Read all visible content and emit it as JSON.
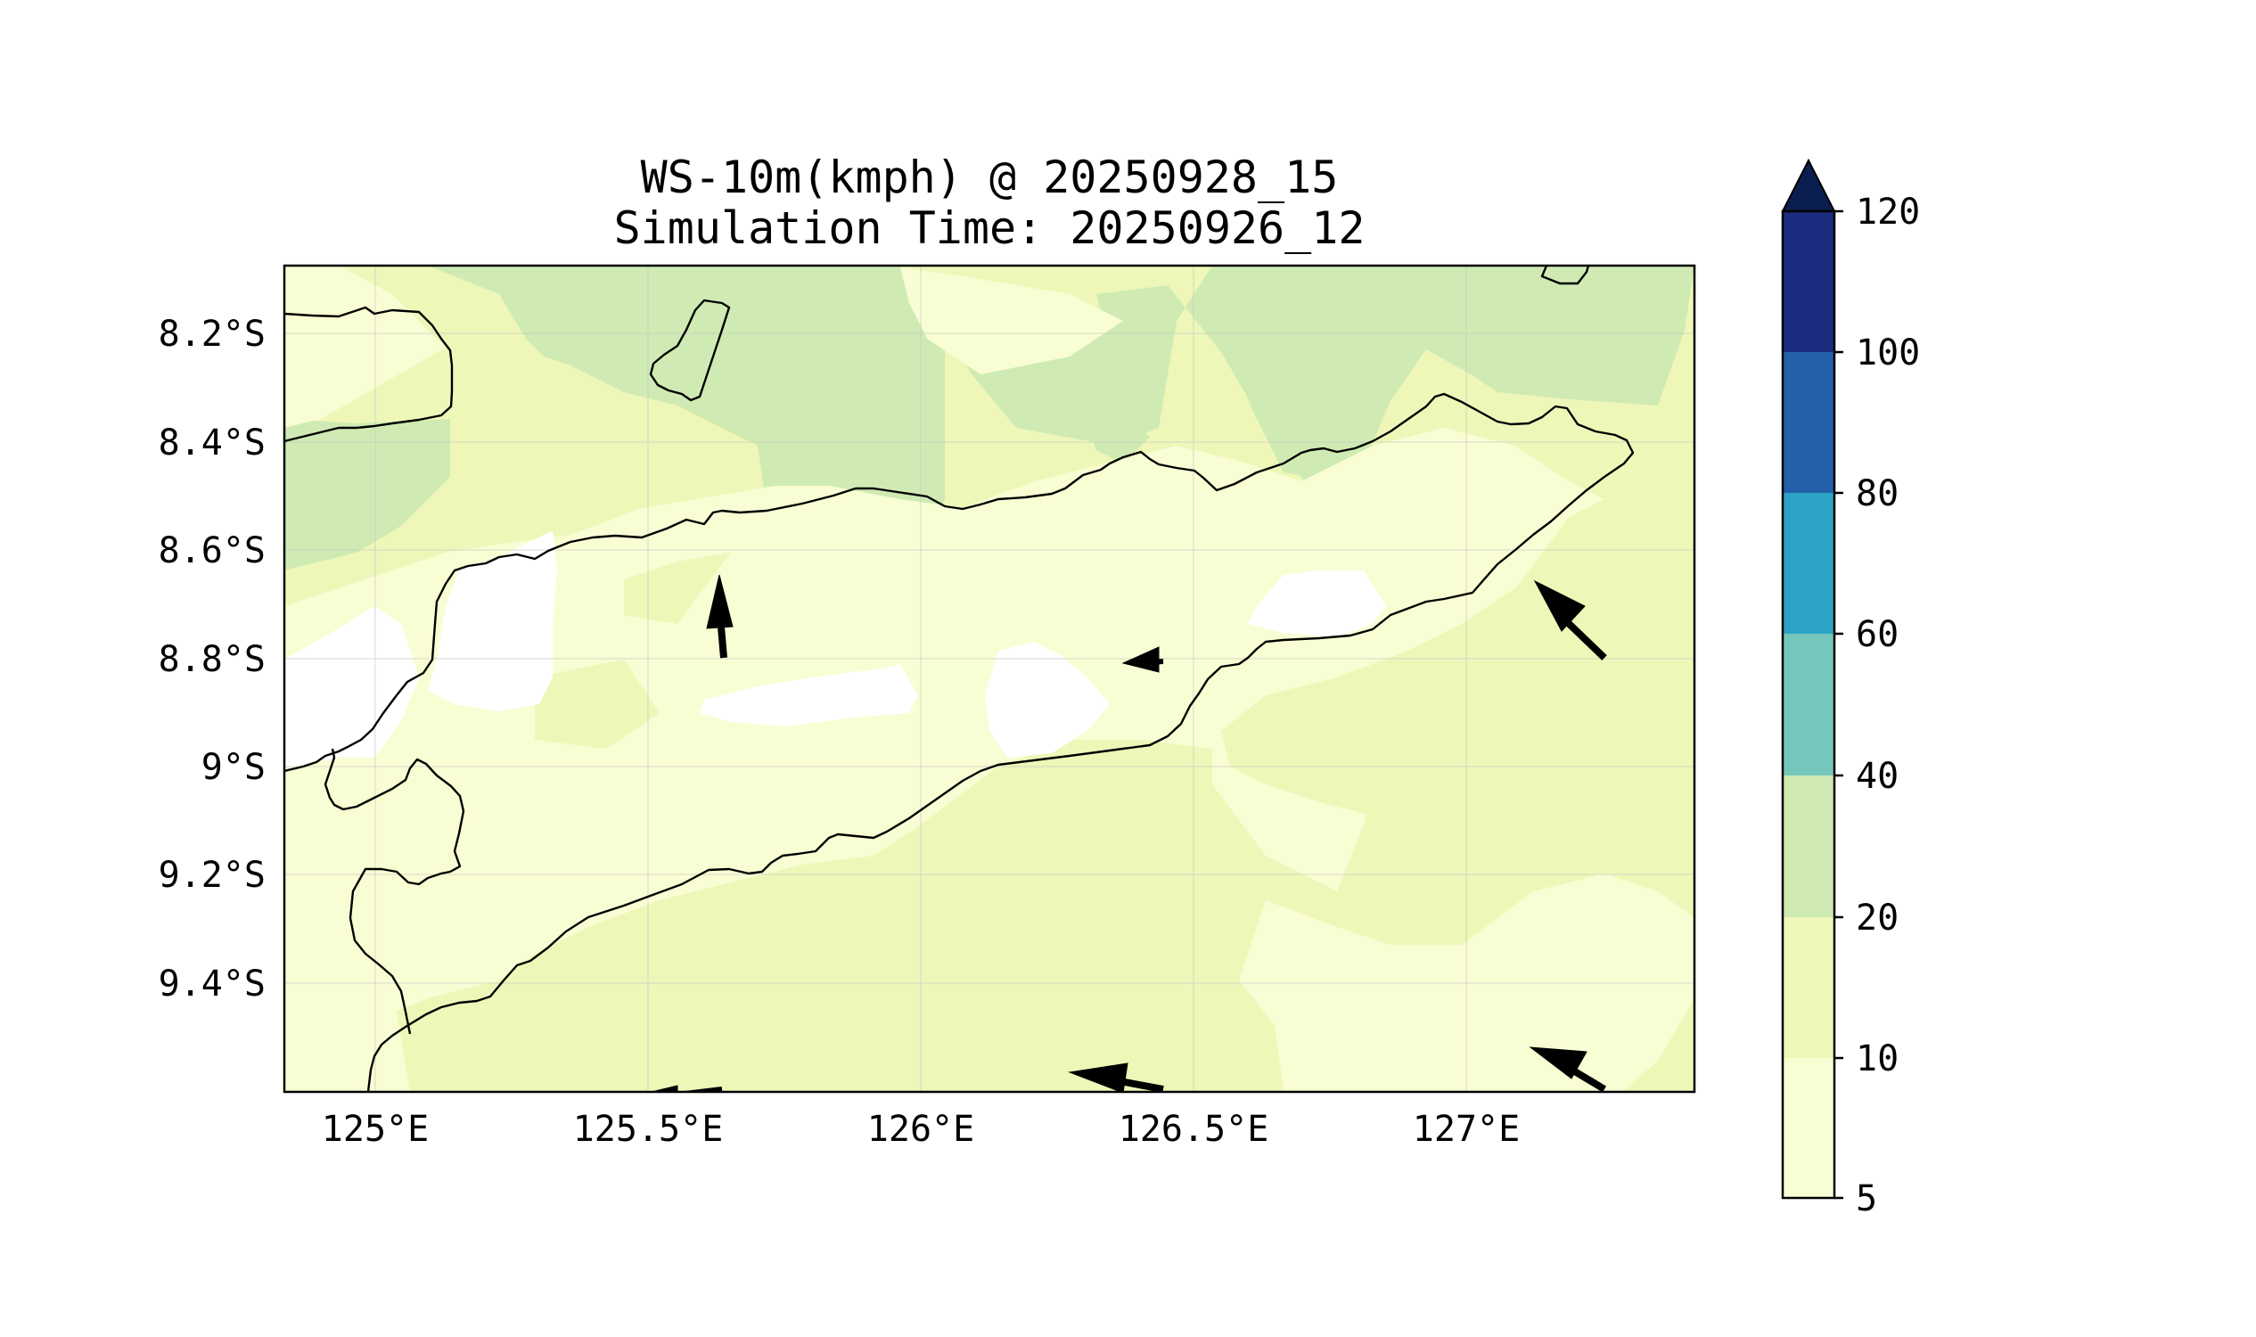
{
  "figure": {
    "title_line1": "WS-10m(kmph) @ 20250928_15",
    "title_line2": "Simulation Time: 20250926_12"
  },
  "map": {
    "lon_ticks": [
      "125°E",
      "125.5°E",
      "126°E",
      "126.5°E",
      "127°E"
    ],
    "lat_ticks": [
      "8.2°S",
      "8.4°S",
      "8.6°S",
      "8.8°S",
      "9°S",
      "9.2°S",
      "9.4°S"
    ],
    "lon_tick_values": [
      125.0,
      125.5,
      126.0,
      126.5,
      127.0
    ],
    "lat_tick_values": [
      -8.2,
      -8.4,
      -8.6,
      -8.8,
      -9.0,
      -9.2,
      -9.4
    ],
    "extent": {
      "lon_min": 124.83,
      "lon_max": 127.42,
      "lat_min": -9.6,
      "lat_max": -8.07
    },
    "grid": true,
    "coastline_color": "#000000",
    "wind_vectors": [
      {
        "lon": 125.63,
        "lat": -8.8,
        "direction": "N"
      },
      {
        "lon": 126.44,
        "lat": -8.81,
        "direction": "W"
      },
      {
        "lon": 127.26,
        "lat": -8.8,
        "direction": "NW"
      },
      {
        "lon": 126.45,
        "lat": -9.6,
        "direction": "WNW"
      },
      {
        "lon": 127.26,
        "lat": -9.6,
        "direction": "NW"
      },
      {
        "lon": 125.62,
        "lat": -9.6,
        "direction": "W"
      }
    ]
  },
  "colorbar": {
    "levels": [
      "5",
      "10",
      "20",
      "40",
      "60",
      "80",
      "100",
      "120"
    ],
    "colors": [
      "#f9fdd3",
      "#eef7b8",
      "#cfebb3",
      "#76c7bb",
      "#2da1c6",
      "#2261a9",
      "#1b2c7e"
    ],
    "extend_color": "#0a1e4f",
    "extend": "max"
  },
  "chart_data": {
    "type": "heatmap",
    "title": "WS-10m(kmph) @ 20250928_15",
    "subtitle": "Simulation Time: 20250926_12",
    "xlabel": "",
    "ylabel": "",
    "xlim": [
      124.83,
      127.42
    ],
    "ylim": [
      -9.6,
      -8.07
    ],
    "x_ticks": [
      "125°E",
      "125.5°E",
      "126°E",
      "126.5°E",
      "127°E"
    ],
    "y_ticks": [
      "8.2°S",
      "8.4°S",
      "8.6°S",
      "8.8°S",
      "9°S",
      "9.2°S",
      "9.4°S"
    ],
    "colorbar_levels": [
      5,
      10,
      20,
      40,
      60,
      80,
      100,
      120
    ],
    "grid": true
  }
}
